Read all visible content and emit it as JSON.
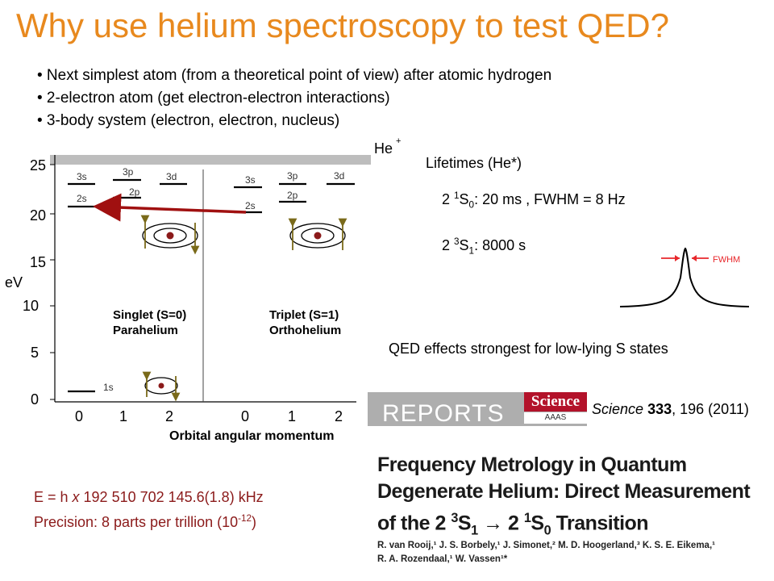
{
  "title": "Why use helium spectroscopy to test QED?",
  "bullets": [
    "• Next simplest atom (from a theoretical point of view) after atomic hydrogen",
    "• 2-electron atom (get electron-electron interactions)",
    "• 3-body system (electron, electron, nucleus)"
  ],
  "diagram": {
    "ion_label": "He",
    "ion_charge": "+",
    "y_axis_label": "eV",
    "y_ticks": [
      "0",
      "5",
      "10",
      "15",
      "20",
      "25"
    ],
    "x_ticks": [
      "0",
      "1",
      "2",
      "0",
      "1",
      "2"
    ],
    "x_axis_label": "Orbital angular momentum",
    "singlet_levels": [
      "3s",
      "3p",
      "3d",
      "2s",
      "2p",
      "1s"
    ],
    "triplet_levels": [
      "3s",
      "3p",
      "3d",
      "2s",
      "2p"
    ],
    "singlet_name": "Singlet (S=0)",
    "singlet_sub": "Parahelium",
    "triplet_name": "Triplet (S=1)",
    "triplet_sub": "Orthohelium"
  },
  "lifetimes": {
    "heading": "Lifetimes (He*)",
    "singlet_prefix": "2 ",
    "singlet_sup": "1",
    "singlet_state": "S",
    "singlet_sub": "0",
    "singlet_value": ": 20 ms , FWHM = 8 Hz",
    "triplet_prefix": "2 ",
    "triplet_sup": "3",
    "triplet_state": "S",
    "triplet_sub": "1",
    "triplet_value": ": 8000 s"
  },
  "lineshape": {
    "fwhm_label": "FWHM",
    "accent": "#e8272b"
  },
  "qed_note": "QED effects strongest for low-lying S states",
  "energy": {
    "equation_prefix": "E = h ",
    "equation_x": "x",
    "equation_value": " 192 510 702 145.6(1.8) kHz",
    "precision_text": "Precision: 8 parts per trillion (10",
    "precision_exp": "-12",
    "precision_close": ")"
  },
  "paper": {
    "section": "REPORTS",
    "journal_logo": "Science",
    "journal_sub": "AAAS",
    "journal_name": "Science",
    "volume": "333",
    "citation_rest": ", 196 (2011)",
    "title_line1": "Frequency Metrology in Quantum",
    "title_line2": "Degenerate Helium: Direct Measurement",
    "title_line3_prefix": "of the 2 ",
    "title_line3_mid": " → 2 ",
    "authors_line1": "R. van Rooij,¹ J. S. Borbely,¹ J. Simonet,² M. D. Hoogerland,³ K. S. E. Eikema,¹",
    "authors_line2": "R. A. Rozendaal,¹ W. Vassen¹*"
  },
  "colors": {
    "title": "#e8891e",
    "arrow": "#a01010",
    "energy_text": "#8b1a1a",
    "orbit_arrow": "#7a6a1a"
  }
}
